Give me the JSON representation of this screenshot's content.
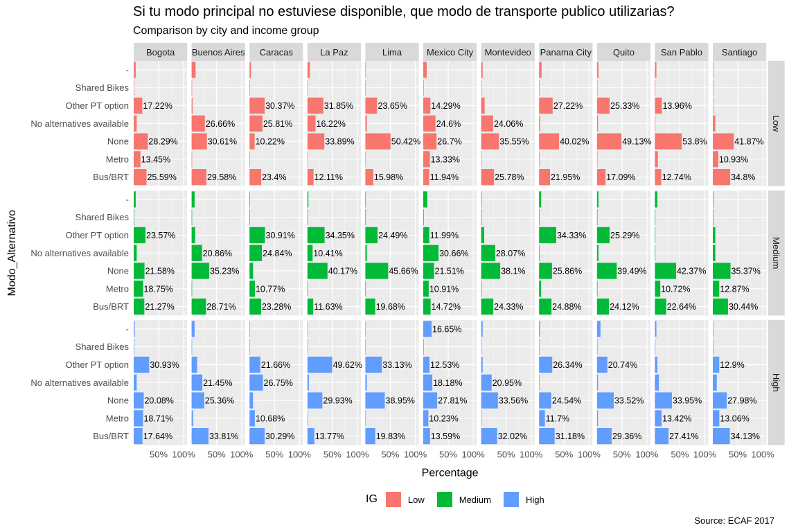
{
  "chart_data": {
    "type": "bar",
    "orientation": "horizontal",
    "faceted": true,
    "title": "Si tu modo principal no estuviese disponible, que modo de transporte publico utilizarias?",
    "subtitle": "Comparison by city and income group",
    "caption": "Source: ECAF 2017",
    "xlabel": "Percentage",
    "ylabel": "Modo_Alternativo",
    "x_tick_labels": [
      "50%",
      "100%"
    ],
    "xlim": [
      0,
      100
    ],
    "grid": true,
    "legend": {
      "title": "IG",
      "placement": "bottom",
      "entries": [
        "Low",
        "Medium",
        "High"
      ]
    },
    "colors": {
      "Low": "#F8766D",
      "Medium": "#00BA38",
      "High": "#619CFF",
      "panel_bg": "#EBEBEB",
      "strip_bg": "#D9D9D9"
    },
    "cities": [
      "Bogota",
      "Buenos Aires",
      "Caracas",
      "La Paz",
      "Lima",
      "Mexico City",
      "Montevideo",
      "Panama City",
      "Quito",
      "San Pablo",
      "Santiago"
    ],
    "groups": [
      "Low",
      "Medium",
      "High"
    ],
    "categories": [
      "-",
      "Shared Bikes",
      "Other PT option",
      "No alternatives available",
      "None",
      "Metro",
      "Bus/BRT"
    ],
    "values": {
      "Low": {
        "Bogota": [
          4,
          1,
          17.22,
          6,
          28.29,
          13.45,
          25.59
        ],
        "Buenos Aires": [
          8,
          1,
          2,
          26.66,
          30.61,
          1,
          29.58
        ],
        "Caracas": [
          3,
          1,
          30.37,
          25.81,
          10.22,
          1,
          23.4
        ],
        "La Paz": [
          5,
          1,
          31.85,
          16.22,
          33.89,
          1,
          12.11
        ],
        "Lima": [
          1,
          1,
          23.65,
          3,
          50.42,
          1,
          15.98
        ],
        "Mexico City": [
          7,
          1,
          14.29,
          24.6,
          26.7,
          13.33,
          11.94
        ],
        "Montevideo": [
          3,
          1,
          7,
          24.06,
          35.55,
          1,
          25.78
        ],
        "Panama City": [
          5,
          1,
          27.22,
          2,
          40.02,
          1,
          21.95
        ],
        "Quito": [
          3,
          1,
          25.33,
          2,
          49.13,
          1,
          17.09
        ],
        "San Pablo": [
          3,
          1,
          13.96,
          1,
          53.8,
          6,
          12.74
        ],
        "Santiago": [
          1,
          1,
          1,
          5,
          41.87,
          10.93,
          34.8
        ]
      },
      "Medium": {
        "Bogota": [
          4,
          1,
          23.57,
          6,
          21.58,
          18.75,
          21.27
        ],
        "Buenos Aires": [
          6,
          1,
          7,
          20.86,
          35.23,
          1,
          28.71
        ],
        "Caracas": [
          1,
          1,
          30.91,
          24.84,
          7,
          10.77,
          23.28
        ],
        "La Paz": [
          2,
          1,
          34.35,
          10.41,
          40.17,
          1,
          11.63
        ],
        "Lima": [
          1,
          1,
          24.49,
          3,
          45.66,
          1,
          19.68
        ],
        "Mexico City": [
          8,
          1,
          11.99,
          30.66,
          21.51,
          10.91,
          14.72
        ],
        "Montevideo": [
          1,
          1,
          6,
          28.07,
          38.1,
          1,
          24.33
        ],
        "Panama City": [
          4,
          1,
          34.33,
          1,
          25.86,
          4,
          24.88
        ],
        "Quito": [
          3,
          1,
          25.29,
          3,
          39.49,
          1,
          24.12
        ],
        "San Pablo": [
          5,
          1,
          1,
          1,
          42.37,
          10.72,
          22.64
        ],
        "Santiago": [
          1,
          1,
          5,
          5,
          35.37,
          12.87,
          30.44
        ]
      },
      "High": {
        "Bogota": [
          2,
          1,
          30.93,
          6,
          20.08,
          18.71,
          17.64
        ],
        "Buenos Aires": [
          6,
          1,
          11,
          21.45,
          25.36,
          3,
          33.81
        ],
        "Caracas": [
          1,
          1,
          21.66,
          26.75,
          7,
          10.68,
          30.29
        ],
        "La Paz": [
          1,
          1,
          49.62,
          3,
          29.93,
          1,
          13.77
        ],
        "Lima": [
          1,
          1,
          33.13,
          3,
          38.95,
          1,
          19.83
        ],
        "Mexico City": [
          16.65,
          1,
          12.53,
          18.18,
          27.81,
          10.23,
          13.59
        ],
        "Montevideo": [
          3,
          1,
          3,
          20.95,
          33.56,
          1,
          32.02
        ],
        "Panama City": [
          2,
          1,
          26.34,
          1,
          24.54,
          11.7,
          31.18
        ],
        "Quito": [
          7,
          1,
          20.74,
          2,
          33.52,
          2,
          29.36
        ],
        "San Pablo": [
          3,
          1,
          5,
          8,
          33.95,
          13.42,
          27.41
        ],
        "Santiago": [
          1,
          1,
          12.9,
          8,
          27.98,
          13.06,
          34.13
        ]
      }
    },
    "labels": {
      "Low": {
        "Bogota": [
          null,
          null,
          "17.22%",
          null,
          "28.29%",
          "13.45%",
          "25.59%"
        ],
        "Buenos Aires": [
          null,
          null,
          null,
          "26.66%",
          "30.61%",
          null,
          "29.58%"
        ],
        "Caracas": [
          null,
          null,
          "30.37%",
          "25.81%",
          "10.22%",
          null,
          "23.4%"
        ],
        "La Paz": [
          null,
          null,
          "31.85%",
          "16.22%",
          "33.89%",
          null,
          "12.11%"
        ],
        "Lima": [
          null,
          null,
          "23.65%",
          null,
          "50.42%",
          null,
          "15.98%"
        ],
        "Mexico City": [
          null,
          null,
          "14.29%",
          "24.6%",
          "26.7%",
          "13.33%",
          "11.94%"
        ],
        "Montevideo": [
          null,
          null,
          null,
          "24.06%",
          "35.55%",
          null,
          "25.78%"
        ],
        "Panama City": [
          null,
          null,
          "27.22%",
          null,
          "40.02%",
          null,
          "21.95%"
        ],
        "Quito": [
          null,
          null,
          "25.33%",
          null,
          "49.13%",
          null,
          "17.09%"
        ],
        "San Pablo": [
          null,
          null,
          "13.96%",
          null,
          "53.8%",
          null,
          "12.74%"
        ],
        "Santiago": [
          null,
          null,
          null,
          null,
          "41.87%",
          "10.93%",
          "34.8%"
        ]
      },
      "Medium": {
        "Bogota": [
          null,
          null,
          "23.57%",
          null,
          "21.58%",
          "18.75%",
          "21.27%"
        ],
        "Buenos Aires": [
          null,
          null,
          null,
          "20.86%",
          "35.23%",
          null,
          "28.71%"
        ],
        "Caracas": [
          null,
          null,
          "30.91%",
          "24.84%",
          null,
          "10.77%",
          "23.28%"
        ],
        "La Paz": [
          null,
          null,
          "34.35%",
          "10.41%",
          "40.17%",
          null,
          "11.63%"
        ],
        "Lima": [
          null,
          null,
          "24.49%",
          null,
          "45.66%",
          null,
          "19.68%"
        ],
        "Mexico City": [
          null,
          null,
          "11.99%",
          "30.66%",
          "21.51%",
          "10.91%",
          "14.72%"
        ],
        "Montevideo": [
          null,
          null,
          null,
          "28.07%",
          "38.1%",
          null,
          "24.33%"
        ],
        "Panama City": [
          null,
          null,
          "34.33%",
          null,
          "25.86%",
          null,
          "24.88%"
        ],
        "Quito": [
          null,
          null,
          "25.29%",
          null,
          "39.49%",
          null,
          "24.12%"
        ],
        "San Pablo": [
          null,
          null,
          null,
          null,
          "42.37%",
          "10.72%",
          "22.64%"
        ],
        "Santiago": [
          null,
          null,
          null,
          null,
          "35.37%",
          "12.87%",
          "30.44%"
        ]
      },
      "High": {
        "Bogota": [
          null,
          null,
          "30.93%",
          null,
          "20.08%",
          "18.71%",
          "17.64%"
        ],
        "Buenos Aires": [
          null,
          null,
          null,
          "21.45%",
          "25.36%",
          null,
          "33.81%"
        ],
        "Caracas": [
          null,
          null,
          "21.66%",
          "26.75%",
          null,
          "10.68%",
          "30.29%"
        ],
        "La Paz": [
          null,
          null,
          "49.62%",
          null,
          "29.93%",
          null,
          "13.77%"
        ],
        "Lima": [
          null,
          null,
          "33.13%",
          null,
          "38.95%",
          null,
          "19.83%"
        ],
        "Mexico City": [
          "16.65%",
          null,
          "12.53%",
          "18.18%",
          "27.81%",
          "10.23%",
          "13.59%"
        ],
        "Montevideo": [
          null,
          null,
          null,
          "20.95%",
          "33.56%",
          null,
          "32.02%"
        ],
        "Panama City": [
          null,
          null,
          "26.34%",
          null,
          "24.54%",
          "11.7%",
          "31.18%"
        ],
        "Quito": [
          null,
          null,
          "20.74%",
          null,
          "33.52%",
          null,
          "29.36%"
        ],
        "San Pablo": [
          null,
          null,
          null,
          null,
          "33.95%",
          "13.42%",
          "27.41%"
        ],
        "Santiago": [
          null,
          null,
          "12.9%",
          null,
          "27.98%",
          "13.06%",
          "34.13%"
        ]
      }
    }
  }
}
